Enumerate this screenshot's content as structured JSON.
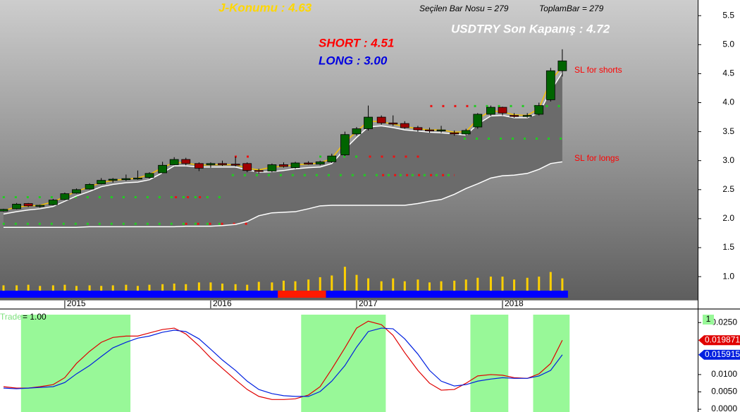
{
  "chart_data": [
    {
      "type": "candlestick",
      "x": [
        2014.58,
        2014.67,
        2014.75,
        2014.83,
        2014.92,
        2015.0,
        2015.08,
        2015.17,
        2015.25,
        2015.33,
        2015.42,
        2015.5,
        2015.58,
        2015.67,
        2015.75,
        2015.83,
        2015.92,
        2016.0,
        2016.08,
        2016.17,
        2016.25,
        2016.33,
        2016.42,
        2016.5,
        2016.58,
        2016.67,
        2016.75,
        2016.83,
        2016.92,
        2017.0,
        2017.08,
        2017.17,
        2017.25,
        2017.33,
        2017.42,
        2017.5,
        2017.58,
        2017.67,
        2017.75,
        2017.83,
        2017.92,
        2018.0,
        2018.08,
        2018.17,
        2018.25,
        2018.33,
        2018.41
      ],
      "open": [
        2.13,
        2.17,
        2.26,
        2.22,
        2.24,
        2.33,
        2.44,
        2.51,
        2.6,
        2.66,
        2.68,
        2.69,
        2.71,
        2.79,
        2.93,
        3.02,
        2.95,
        2.93,
        2.95,
        2.94,
        2.95,
        2.83,
        2.82,
        2.93,
        2.88,
        2.96,
        2.94,
        2.98,
        3.1,
        3.46,
        3.55,
        3.75,
        3.65,
        3.64,
        3.57,
        3.53,
        3.52,
        3.48,
        3.46,
        3.58,
        3.8,
        3.92,
        3.78,
        3.77,
        3.8,
        4.05,
        4.55
      ],
      "high": [
        2.17,
        2.27,
        2.27,
        2.24,
        2.34,
        2.45,
        2.52,
        2.61,
        2.7,
        2.7,
        2.76,
        2.83,
        2.8,
        2.98,
        3.06,
        3.05,
        2.97,
        2.97,
        3.0,
        3.07,
        2.97,
        2.86,
        2.95,
        2.97,
        2.98,
        2.99,
        3.0,
        3.12,
        3.5,
        3.58,
        3.95,
        3.78,
        3.78,
        3.68,
        3.6,
        3.57,
        3.6,
        3.52,
        3.55,
        3.82,
        3.95,
        3.93,
        3.82,
        3.82,
        4.0,
        4.6,
        4.92
      ],
      "low": [
        2.12,
        2.16,
        2.2,
        2.19,
        2.23,
        2.32,
        2.43,
        2.5,
        2.59,
        2.62,
        2.65,
        2.67,
        2.69,
        2.78,
        2.92,
        2.92,
        2.82,
        2.88,
        2.91,
        2.9,
        2.8,
        2.78,
        2.8,
        2.88,
        2.86,
        2.93,
        2.92,
        2.96,
        3.08,
        3.43,
        3.52,
        3.62,
        3.6,
        3.55,
        3.5,
        3.48,
        3.48,
        3.43,
        3.43,
        3.55,
        3.77,
        3.78,
        3.74,
        3.74,
        3.78,
        4.02,
        4.45
      ],
      "close": [
        2.16,
        2.25,
        2.22,
        2.23,
        2.32,
        2.43,
        2.5,
        2.59,
        2.66,
        2.68,
        2.69,
        2.7,
        2.78,
        2.92,
        3.02,
        2.95,
        2.87,
        2.95,
        2.93,
        2.93,
        2.83,
        2.82,
        2.93,
        2.9,
        2.96,
        2.94,
        2.98,
        3.08,
        3.45,
        3.55,
        3.75,
        3.65,
        3.63,
        3.57,
        3.53,
        3.52,
        3.53,
        3.46,
        3.52,
        3.8,
        3.92,
        3.82,
        3.77,
        3.78,
        3.95,
        4.55,
        4.72
      ],
      "up_color": "#006400",
      "down_color": "#a00000",
      "lines": [
        {
          "color": "#f5c400",
          "values": [
            2.14,
            2.2,
            2.22,
            2.23,
            2.29,
            2.38,
            2.47,
            2.55,
            2.62,
            2.66,
            2.68,
            2.7,
            2.76,
            2.88,
            2.97,
            2.96,
            2.92,
            2.93,
            2.93,
            2.93,
            2.87,
            2.84,
            2.89,
            2.9,
            2.93,
            2.94,
            2.96,
            3.04,
            3.32,
            3.5,
            3.68,
            3.67,
            3.63,
            3.59,
            3.55,
            3.53,
            3.53,
            3.49,
            3.5,
            3.72,
            3.86,
            3.84,
            3.79,
            3.78,
            3.9,
            4.38,
            4.62
          ]
        },
        {
          "color": "#ffffff",
          "values": [
            2.08,
            2.12,
            2.15,
            2.17,
            2.21,
            2.3,
            2.39,
            2.47,
            2.55,
            2.59,
            2.62,
            2.63,
            2.67,
            2.79,
            2.91,
            2.91,
            2.89,
            2.89,
            2.89,
            2.89,
            2.84,
            2.8,
            2.81,
            2.83,
            2.86,
            2.88,
            2.89,
            2.95,
            3.2,
            3.4,
            3.58,
            3.6,
            3.57,
            3.53,
            3.51,
            3.49,
            3.48,
            3.46,
            3.44,
            3.63,
            3.77,
            3.78,
            3.74,
            3.74,
            3.82,
            4.2,
            4.52
          ]
        },
        {
          "color": "#ffffff",
          "values": [
            1.85,
            1.85,
            1.85,
            1.85,
            1.85,
            1.85,
            1.85,
            1.86,
            1.86,
            1.86,
            1.86,
            1.86,
            1.86,
            1.86,
            1.86,
            1.87,
            1.87,
            1.87,
            1.88,
            1.9,
            1.95,
            2.05,
            2.1,
            2.11,
            2.12,
            2.17,
            2.22,
            2.23,
            2.23,
            2.23,
            2.23,
            2.23,
            2.23,
            2.23,
            2.26,
            2.3,
            2.33,
            2.42,
            2.52,
            2.6,
            2.7,
            2.74,
            2.75,
            2.78,
            2.85,
            2.95,
            2.98
          ]
        }
      ],
      "band_color": "#6b6b6b",
      "dot_levels": [
        {
          "color": "#22cc22",
          "level": 1.91,
          "x": [
            2014.56,
            2016.13
          ]
        },
        {
          "color": "#ee1111",
          "level": 1.91,
          "x": [
            2015.81,
            2016.25
          ]
        },
        {
          "color": "#22cc22",
          "level": 2.37,
          "x": [
            2014.56,
            2016.1
          ]
        },
        {
          "color": "#ee1111",
          "level": 2.37,
          "x": [
            2015.74,
            2016.0
          ]
        },
        {
          "color": "#22cc22",
          "level": 2.75,
          "x": [
            2016.13,
            2017.67
          ]
        },
        {
          "color": "#ee1111",
          "level": 2.75,
          "x": [
            2017.16,
            2017.67
          ]
        },
        {
          "color": "#ee1111",
          "level": 3.07,
          "x": [
            2016.15,
            2016.29
          ]
        },
        {
          "color": "#22cc22",
          "level": 3.07,
          "x": [
            2016.73,
            2017.06
          ]
        },
        {
          "color": "#ee1111",
          "level": 3.07,
          "x": [
            2017.07,
            2017.43
          ]
        },
        {
          "color": "#22cc22",
          "level": 3.38,
          "x": [
            2017.72,
            2018.42
          ]
        },
        {
          "color": "#ee1111",
          "level": 3.94,
          "x": [
            2017.49,
            2017.77
          ]
        },
        {
          "color": "#22cc22",
          "level": 3.94,
          "x": [
            2017.79,
            2018.42
          ]
        }
      ],
      "volume": {
        "color": "#ffd000",
        "values": [
          0.85,
          0.85,
          0.86,
          0.84,
          0.85,
          0.86,
          0.84,
          0.85,
          0.84,
          0.85,
          0.86,
          0.84,
          0.86,
          0.87,
          0.88,
          0.87,
          0.9,
          0.9,
          0.88,
          0.87,
          0.86,
          0.91,
          0.9,
          0.93,
          0.92,
          0.95,
          0.99,
          1.02,
          1.17,
          1.03,
          0.97,
          0.92,
          0.97,
          0.92,
          0.95,
          0.9,
          0.92,
          0.93,
          0.95,
          0.98,
          1.0,
          1.0,
          0.95,
          0.98,
          1.0,
          1.08,
          0.97
        ]
      },
      "signal_strip": {
        "color": "#0000ff",
        "zone_color": "#ff1a00",
        "zones": [
          [
            2016.46,
            2016.79
          ]
        ]
      },
      "xlim": [
        2014.556,
        2019.338
      ],
      "xticks": [
        2015,
        2016,
        2017,
        2018
      ],
      "ylim": [
        0.6,
        5.77
      ],
      "yticks": [
        {
          "value": 1,
          "label": "1.0"
        },
        1.5,
        {
          "value": 2,
          "label": "2.0"
        },
        2.5,
        {
          "value": 3,
          "label": "3.0"
        },
        3.5,
        {
          "value": 4,
          "label": "4.0"
        },
        4.5,
        {
          "value": 5,
          "label": "5.0"
        },
        5.5
      ],
      "annotations": [
        {
          "text": "J-Konumu : 4.63",
          "color": "#ffd700"
        },
        {
          "text": "Seçilen Bar Nosu = 279",
          "color": "#000000"
        },
        {
          "text": "ToplamBar = 279",
          "color": "#000000"
        },
        {
          "text": "USDTRY Son Kapanış : 4.72",
          "color": "#ffffff"
        },
        {
          "text": "SHORT : 4.51",
          "color": "#ff0000"
        },
        {
          "text": "LONG : 3.00",
          "color": "#0000e0"
        },
        {
          "text": "SL for shorts",
          "color": "#ff0000"
        },
        {
          "text": "SL for longs",
          "color": "#ff0000"
        }
      ]
    },
    {
      "type": "line",
      "x": [
        2014.58,
        2014.67,
        2014.75,
        2014.83,
        2014.92,
        2015.0,
        2015.08,
        2015.17,
        2015.25,
        2015.33,
        2015.42,
        2015.5,
        2015.58,
        2015.67,
        2015.75,
        2015.83,
        2015.92,
        2016.0,
        2016.08,
        2016.17,
        2016.25,
        2016.33,
        2016.42,
        2016.5,
        2016.58,
        2016.67,
        2016.75,
        2016.83,
        2016.92,
        2017.0,
        2017.08,
        2017.17,
        2017.25,
        2017.33,
        2017.42,
        2017.5,
        2017.58,
        2017.67,
        2017.75,
        2017.83,
        2017.92,
        2018.0,
        2018.08,
        2018.17,
        2018.25,
        2018.33,
        2018.41
      ],
      "series": [
        {
          "color": "#e00000",
          "last_label": "0.019871",
          "values": [
            0.0065,
            0.0061,
            0.0061,
            0.0065,
            0.0071,
            0.0091,
            0.0132,
            0.0167,
            0.0193,
            0.0207,
            0.0211,
            0.0211,
            0.022,
            0.023,
            0.0234,
            0.0217,
            0.0183,
            0.0148,
            0.0118,
            0.0085,
            0.0057,
            0.0037,
            0.0028,
            0.0028,
            0.003,
            0.0041,
            0.0065,
            0.0116,
            0.0177,
            0.0234,
            0.0254,
            0.0244,
            0.0213,
            0.0163,
            0.0112,
            0.0075,
            0.0055,
            0.0057,
            0.0075,
            0.0096,
            0.01,
            0.0098,
            0.0091,
            0.0089,
            0.0102,
            0.0132,
            0.0199
          ]
        },
        {
          "color": "#0020e0",
          "last_label": "0.015915",
          "values": [
            0.0061,
            0.0059,
            0.0061,
            0.0063,
            0.0065,
            0.0077,
            0.0102,
            0.0126,
            0.0152,
            0.0177,
            0.0193,
            0.0205,
            0.0211,
            0.0222,
            0.0228,
            0.0224,
            0.0203,
            0.0173,
            0.0142,
            0.0112,
            0.0081,
            0.0057,
            0.0045,
            0.0039,
            0.0037,
            0.0037,
            0.0051,
            0.0081,
            0.0126,
            0.0179,
            0.0224,
            0.0234,
            0.0232,
            0.0203,
            0.0159,
            0.0112,
            0.0081,
            0.0067,
            0.0071,
            0.0081,
            0.0087,
            0.0091,
            0.0089,
            0.0089,
            0.0096,
            0.0112,
            0.0157
          ]
        }
      ],
      "zone_color": "#98f898",
      "zones": [
        [
          2014.7,
          2015.45
        ],
        [
          2016.62,
          2017.2
        ],
        [
          2017.78,
          2018.04
        ],
        [
          2018.21,
          2018.46
        ]
      ],
      "label": "Trade",
      "label_value": "= 1.00",
      "marker_text": "1",
      "xlim": [
        2014.556,
        2019.338
      ],
      "ylim": [
        -0.0008,
        0.0285
      ],
      "yticks": [
        {
          "value": 0,
          "label": "0.0000"
        },
        {
          "value": 0.005,
          "label": "0.0050"
        },
        {
          "value": 0.01,
          "label": "0.0100"
        },
        {
          "value": 0.025,
          "label": "0.0250"
        }
      ]
    }
  ]
}
